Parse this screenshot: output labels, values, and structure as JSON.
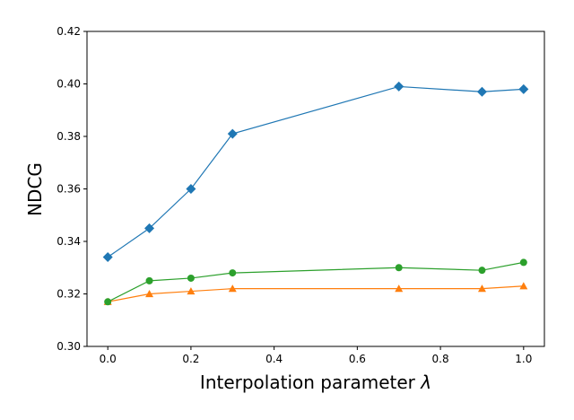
{
  "chart_data": {
    "type": "line",
    "xlabel_text": "Interpolation parameter ",
    "xlabel_symbol": "λ",
    "ylabel": "NDCG",
    "xlim": [
      -0.05,
      1.05
    ],
    "ylim": [
      0.3,
      0.42
    ],
    "x_ticks": [
      0.0,
      0.2,
      0.4,
      0.6,
      0.8,
      1.0
    ],
    "x_tick_labels": [
      "0.0",
      "0.2",
      "0.4",
      "0.6",
      "0.8",
      "1.0"
    ],
    "y_ticks": [
      0.3,
      0.32,
      0.34,
      0.36,
      0.38,
      0.4,
      0.42
    ],
    "y_tick_labels": [
      "0.30",
      "0.32",
      "0.34",
      "0.36",
      "0.38",
      "0.40",
      "0.42"
    ],
    "grid": false,
    "x": [
      0.0,
      0.1,
      0.2,
      0.3,
      0.7,
      0.9,
      1.0
    ],
    "series": [
      {
        "key": "blue",
        "color": "#1f77b4",
        "marker": "diamond",
        "values": [
          0.334,
          0.345,
          0.36,
          0.381,
          0.399,
          0.397,
          0.398
        ]
      },
      {
        "key": "orange",
        "color": "#ff7f0e",
        "marker": "triangle",
        "values": [
          0.317,
          0.32,
          0.321,
          0.322,
          0.322,
          0.322,
          0.323
        ]
      },
      {
        "key": "green",
        "color": "#2ca02c",
        "marker": "circle",
        "values": [
          0.317,
          0.325,
          0.326,
          0.328,
          0.33,
          0.329,
          0.332
        ]
      }
    ]
  }
}
